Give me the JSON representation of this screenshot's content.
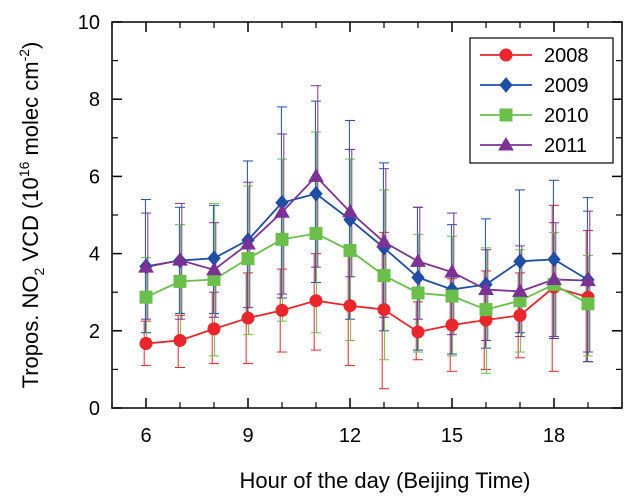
{
  "chart_data": {
    "type": "line",
    "xlabel": "Hour of the day (Beijing Time)",
    "ylabel": {
      "prefix": "Tropos. NO",
      "sub": "2",
      "mid": " VCD (10",
      "sup1": "16",
      "mid2": " molec cm",
      "sup2": "-2",
      "suffix": ")"
    },
    "xlim": [
      5,
      20
    ],
    "ylim": [
      0,
      10
    ],
    "x_ticks": [
      6,
      9,
      12,
      15,
      18
    ],
    "x_minor_ticks": [
      5,
      7,
      8,
      10,
      11,
      13,
      14,
      16,
      17,
      19,
      20
    ],
    "y_ticks": [
      0,
      2,
      4,
      6,
      8,
      10
    ],
    "y_minor_ticks": [
      1,
      3,
      5,
      7,
      9
    ],
    "x_tick_labels": [
      "6",
      "9",
      "12",
      "15",
      "18"
    ],
    "y_tick_labels": [
      "0",
      "2",
      "4",
      "6",
      "8",
      "10"
    ],
    "legend_position": "top-right",
    "x": [
      6,
      7,
      8,
      9,
      10,
      11,
      12,
      13,
      14,
      15,
      16,
      17,
      18,
      19
    ],
    "series": [
      {
        "name": "2008",
        "color": "#e8262b",
        "marker": "circle",
        "values": [
          1.67,
          1.75,
          2.05,
          2.33,
          2.53,
          2.78,
          2.65,
          2.55,
          1.97,
          2.15,
          2.28,
          2.4,
          3.13,
          2.87
        ],
        "err_low": [
          1.1,
          1.05,
          1.15,
          1.15,
          1.45,
          1.5,
          1.1,
          0.5,
          1.25,
          0.95,
          1.0,
          1.3,
          0.95,
          1.2
        ],
        "err_high": [
          2.25,
          2.4,
          3.0,
          3.5,
          3.6,
          4.0,
          4.2,
          4.55,
          2.75,
          3.35,
          3.55,
          3.5,
          5.25,
          4.6
        ]
      },
      {
        "name": "2009",
        "color": "#1f4ea3",
        "marker": "diamond",
        "values": [
          3.67,
          3.82,
          3.88,
          4.35,
          5.32,
          5.55,
          4.88,
          4.15,
          3.38,
          3.07,
          3.2,
          3.8,
          3.85,
          3.32
        ],
        "err_low": [
          1.95,
          2.45,
          2.45,
          2.3,
          2.85,
          3.25,
          2.3,
          2.0,
          1.5,
          1.4,
          1.55,
          1.95,
          1.8,
          1.2
        ],
        "err_high": [
          5.4,
          5.2,
          5.25,
          6.4,
          7.8,
          7.95,
          7.45,
          6.35,
          5.2,
          4.75,
          4.9,
          5.65,
          5.9,
          5.45
        ]
      },
      {
        "name": "2010",
        "color": "#6abf4b",
        "marker": "square",
        "values": [
          2.87,
          3.28,
          3.33,
          3.87,
          4.37,
          4.52,
          4.08,
          3.43,
          2.98,
          2.9,
          2.55,
          2.78,
          3.2,
          2.7
        ],
        "err_low": [
          1.8,
          1.85,
          1.35,
          1.9,
          2.25,
          1.95,
          1.75,
          1.25,
          1.45,
          1.35,
          0.9,
          1.45,
          1.85,
          1.35
        ],
        "err_high": [
          3.9,
          4.75,
          5.3,
          5.75,
          6.45,
          7.15,
          6.45,
          5.65,
          4.5,
          4.45,
          4.15,
          4.1,
          4.55,
          3.95
        ]
      },
      {
        "name": "2011",
        "color": "#7b3294",
        "marker": "triangle",
        "values": [
          3.65,
          3.83,
          3.58,
          4.25,
          5.07,
          6.0,
          5.08,
          4.3,
          3.8,
          3.52,
          3.07,
          3.02,
          3.33,
          3.3
        ],
        "err_low": [
          2.3,
          2.3,
          2.35,
          2.6,
          2.95,
          3.65,
          3.4,
          2.35,
          2.3,
          1.9,
          1.75,
          1.85,
          1.85,
          1.45
        ],
        "err_high": [
          5.05,
          5.3,
          4.8,
          5.85,
          7.1,
          8.35,
          6.7,
          6.2,
          5.2,
          5.05,
          4.1,
          4.2,
          4.8,
          5.1
        ]
      }
    ]
  }
}
